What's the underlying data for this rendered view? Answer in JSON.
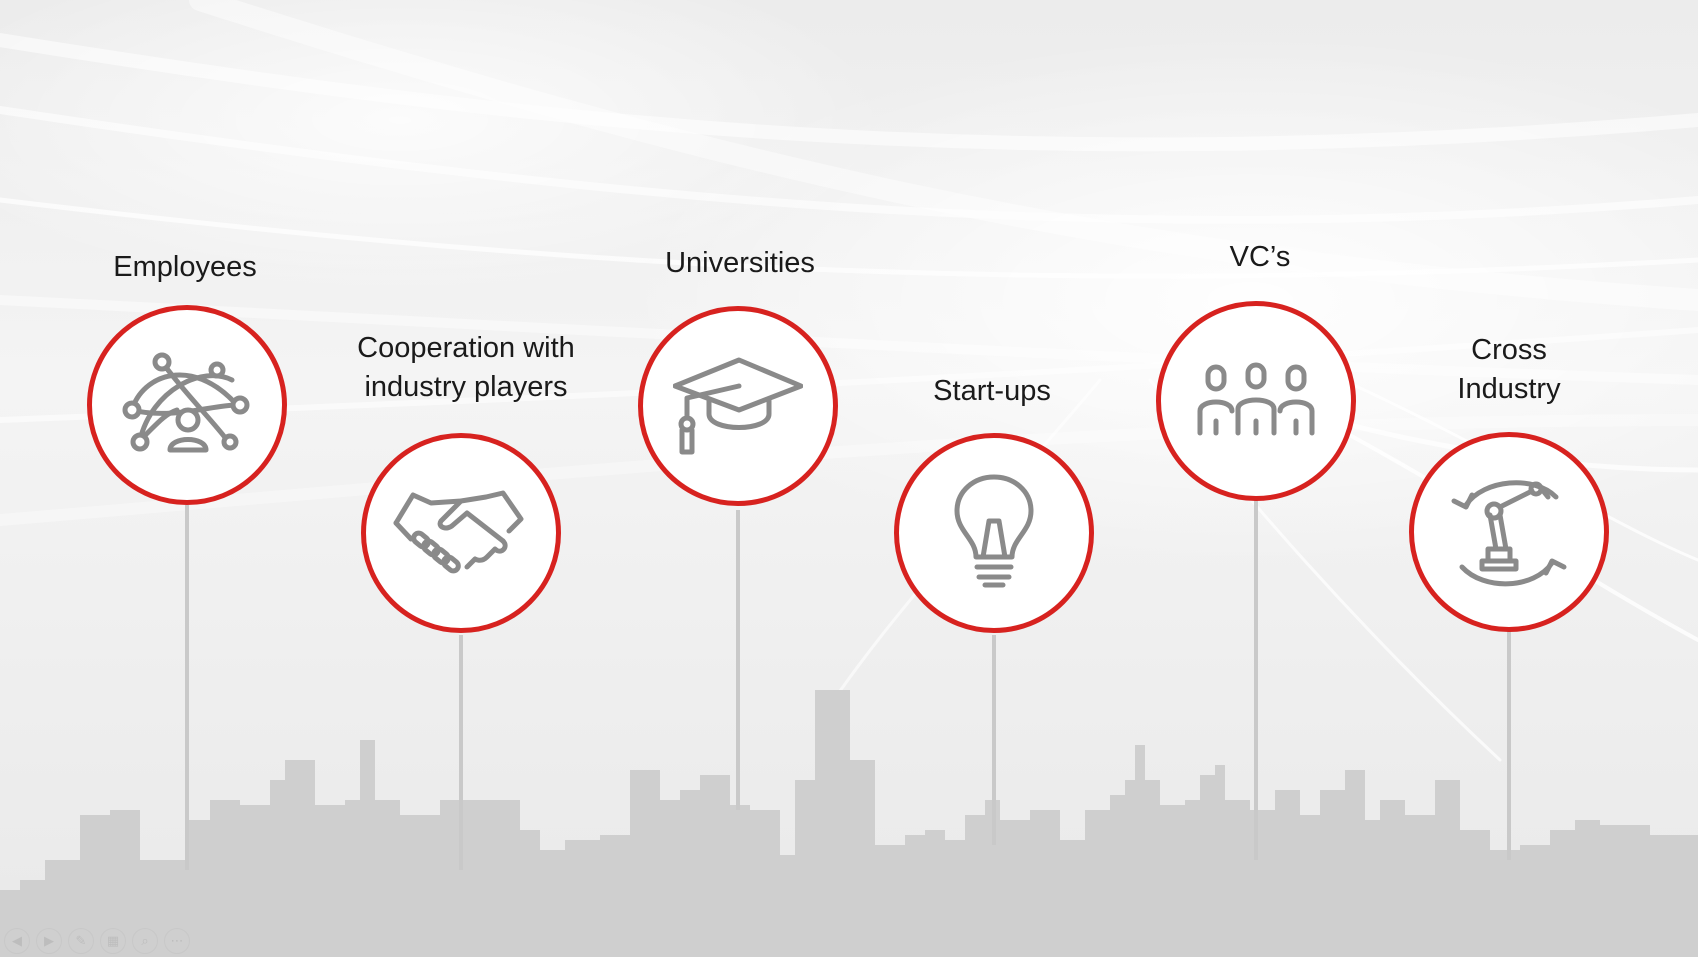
{
  "slide": {
    "items": [
      {
        "label": "Employees",
        "icon": "network-person-icon"
      },
      {
        "label": "Cooperation with\nindustry players",
        "icon": "handshake-icon"
      },
      {
        "label": "Universities",
        "icon": "graduation-cap-icon"
      },
      {
        "label": "Start-ups",
        "icon": "lightbulb-icon"
      },
      {
        "label": "VC’s",
        "icon": "group-people-icon"
      },
      {
        "label": "Cross\nIndustry",
        "icon": "robot-arm-cycle-icon"
      }
    ],
    "accent_color": "#d7221f",
    "icon_color": "#8a8a8a",
    "skyline_color": "#cfcfcf"
  },
  "controls": [
    {
      "name": "previous-slide-button",
      "glyph": "◀"
    },
    {
      "name": "next-slide-button",
      "glyph": "▶"
    },
    {
      "name": "pen-tool-button",
      "glyph": "✎"
    },
    {
      "name": "slides-grid-button",
      "glyph": "▦"
    },
    {
      "name": "zoom-button",
      "glyph": "⌕"
    },
    {
      "name": "more-options-button",
      "glyph": "⋯"
    }
  ]
}
